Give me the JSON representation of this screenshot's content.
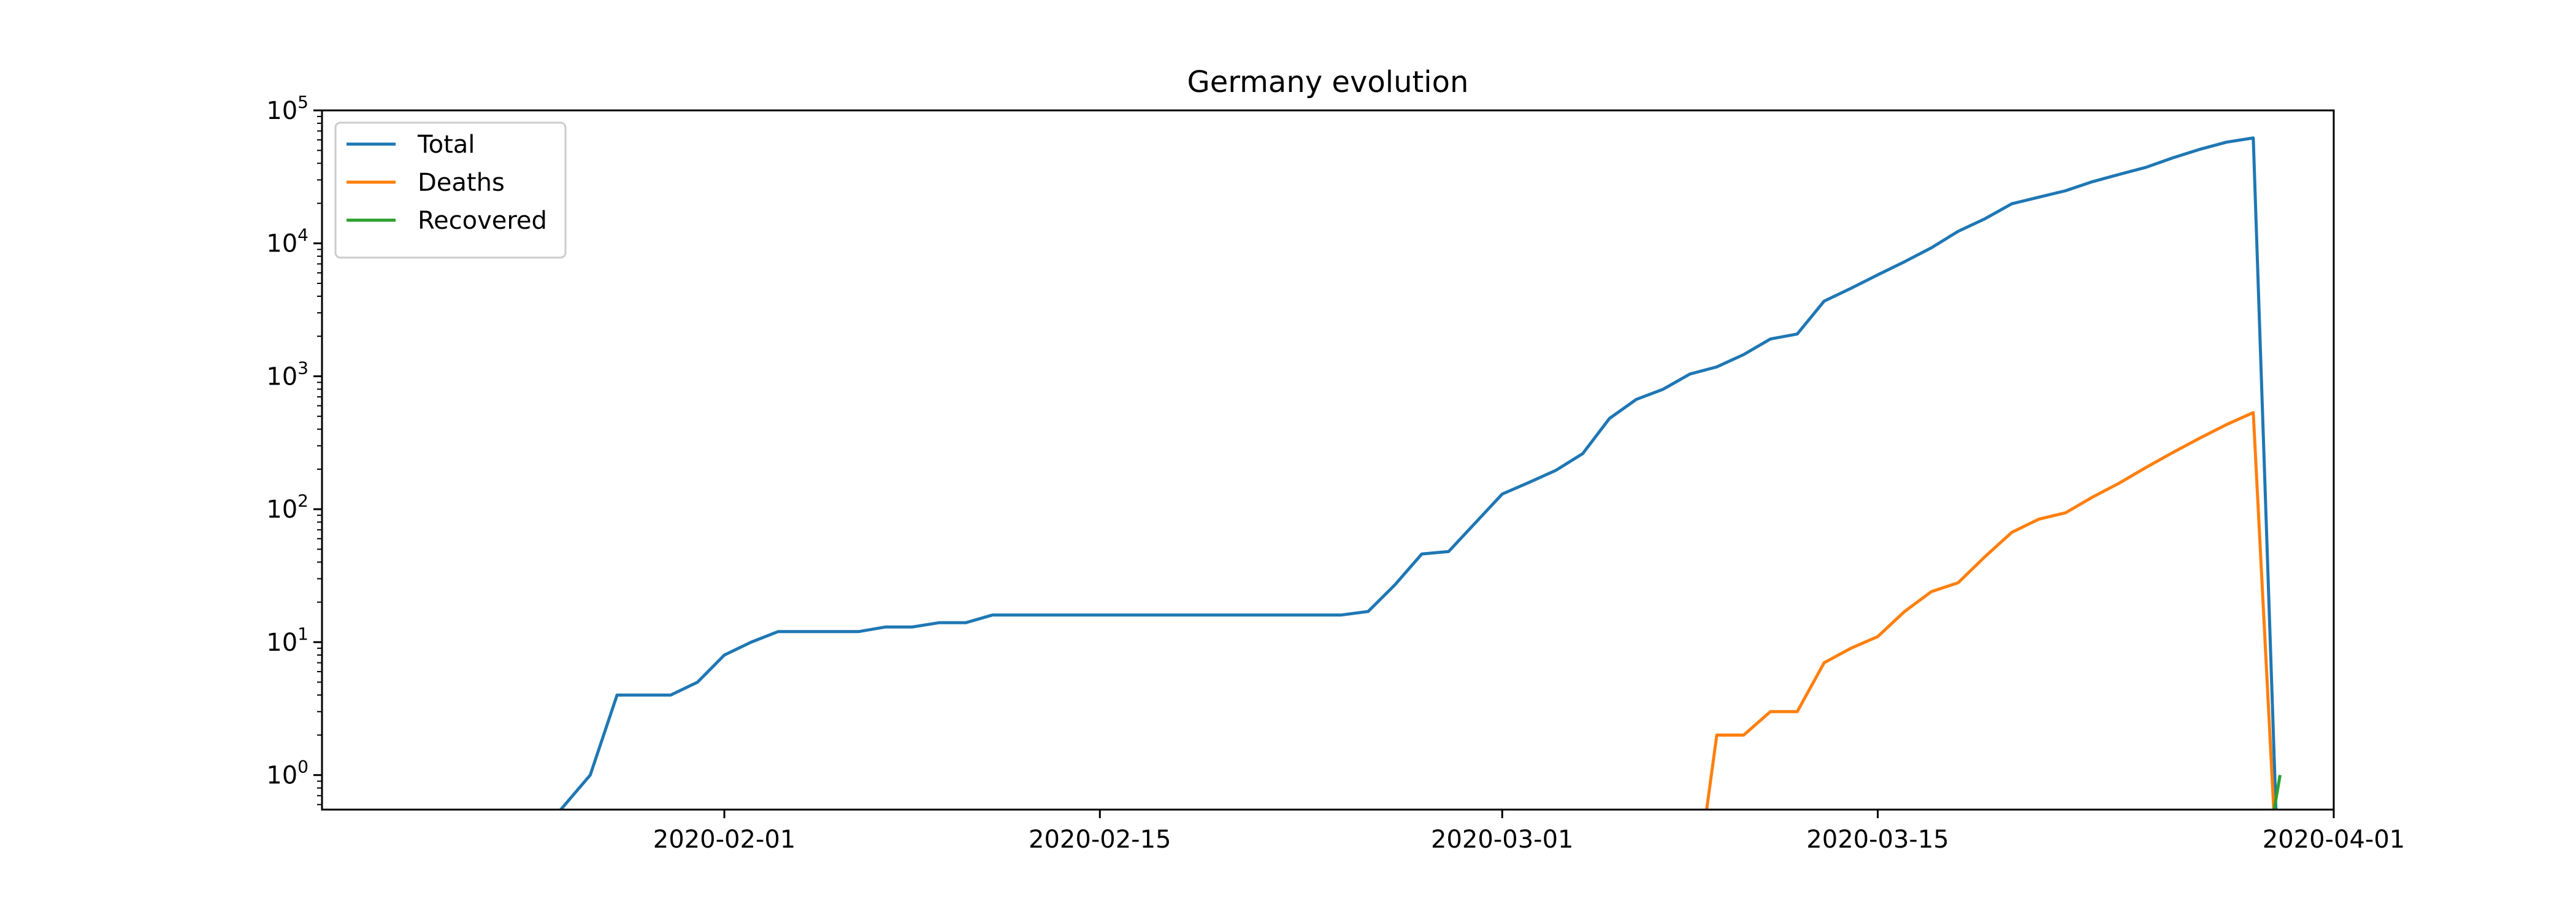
{
  "chart_data": {
    "type": "line",
    "title": "Germany evolution",
    "xlabel": "",
    "ylabel": "",
    "yscale": "log",
    "ylim": [
      0.55,
      100000
    ],
    "xlim": [
      "2020-01-17",
      "2020-04-01"
    ],
    "x_tick_labels": [
      "2020-02-01",
      "2020-02-15",
      "2020-03-01",
      "2020-03-15",
      "2020-04-01"
    ],
    "y_tick_labels": [
      {
        "base": "10",
        "exp": "0"
      },
      {
        "base": "10",
        "exp": "1"
      },
      {
        "base": "10",
        "exp": "2"
      },
      {
        "base": "10",
        "exp": "3"
      },
      {
        "base": "10",
        "exp": "4"
      },
      {
        "base": "10",
        "exp": "5"
      }
    ],
    "grid": false,
    "legend_position": "top-left",
    "series": [
      {
        "name": "Total",
        "color": "#1f77b4",
        "x": [
          "2020-01-22",
          "2020-01-27",
          "2020-01-28",
          "2020-01-29",
          "2020-01-30",
          "2020-01-31",
          "2020-02-01",
          "2020-02-02",
          "2020-02-03",
          "2020-02-04",
          "2020-02-05",
          "2020-02-06",
          "2020-02-07",
          "2020-02-08",
          "2020-02-09",
          "2020-02-10",
          "2020-02-11",
          "2020-02-12",
          "2020-02-13",
          "2020-02-14",
          "2020-02-15",
          "2020-02-16",
          "2020-02-17",
          "2020-02-18",
          "2020-02-19",
          "2020-02-20",
          "2020-02-21",
          "2020-02-22",
          "2020-02-23",
          "2020-02-24",
          "2020-02-25",
          "2020-02-26",
          "2020-02-27",
          "2020-02-28",
          "2020-02-29",
          "2020-03-01",
          "2020-03-02",
          "2020-03-03",
          "2020-03-04",
          "2020-03-05",
          "2020-03-06",
          "2020-03-07",
          "2020-03-08",
          "2020-03-09",
          "2020-03-10",
          "2020-03-11",
          "2020-03-12",
          "2020-03-13",
          "2020-03-14",
          "2020-03-15",
          "2020-03-16",
          "2020-03-17",
          "2020-03-18",
          "2020-03-19",
          "2020-03-20",
          "2020-03-21",
          "2020-03-22",
          "2020-03-23",
          "2020-03-24",
          "2020-03-25",
          "2020-03-26",
          "2020-03-27",
          "2020-03-28",
          "2020-03-29",
          "2020-03-30"
        ],
        "values": [
          0,
          1,
          4,
          4,
          4,
          5,
          8,
          10,
          12,
          12,
          12,
          12,
          13,
          13,
          14,
          14,
          16,
          16,
          16,
          16,
          16,
          16,
          16,
          16,
          16,
          16,
          16,
          16,
          16,
          16,
          17,
          27,
          46,
          48,
          79,
          130,
          159,
          196,
          262,
          482,
          670,
          799,
          1040,
          1176,
          1457,
          1908,
          2078,
          3675,
          4585,
          5795,
          7272,
          9257,
          12327,
          15320,
          19848,
          22213,
          24873,
          29056,
          32986,
          37323,
          43938,
          50871,
          57695,
          62095,
          0
        ]
      },
      {
        "name": "Deaths",
        "color": "#ff7f0e",
        "x": [
          "2020-03-08",
          "2020-03-09",
          "2020-03-10",
          "2020-03-11",
          "2020-03-12",
          "2020-03-13",
          "2020-03-14",
          "2020-03-15",
          "2020-03-16",
          "2020-03-17",
          "2020-03-18",
          "2020-03-19",
          "2020-03-20",
          "2020-03-21",
          "2020-03-22",
          "2020-03-23",
          "2020-03-24",
          "2020-03-25",
          "2020-03-26",
          "2020-03-27",
          "2020-03-28",
          "2020-03-29",
          "2020-03-30"
        ],
        "values": [
          0,
          2,
          2,
          3,
          3,
          7,
          9,
          11,
          17,
          24,
          28,
          44,
          67,
          84,
          94,
          123,
          157,
          206,
          267,
          342,
          433,
          533,
          0
        ]
      },
      {
        "name": "Recovered",
        "color": "#2ca02c",
        "x": [
          "2020-03-29",
          "2020-03-30"
        ],
        "values": [
          0,
          1
        ]
      }
    ]
  }
}
